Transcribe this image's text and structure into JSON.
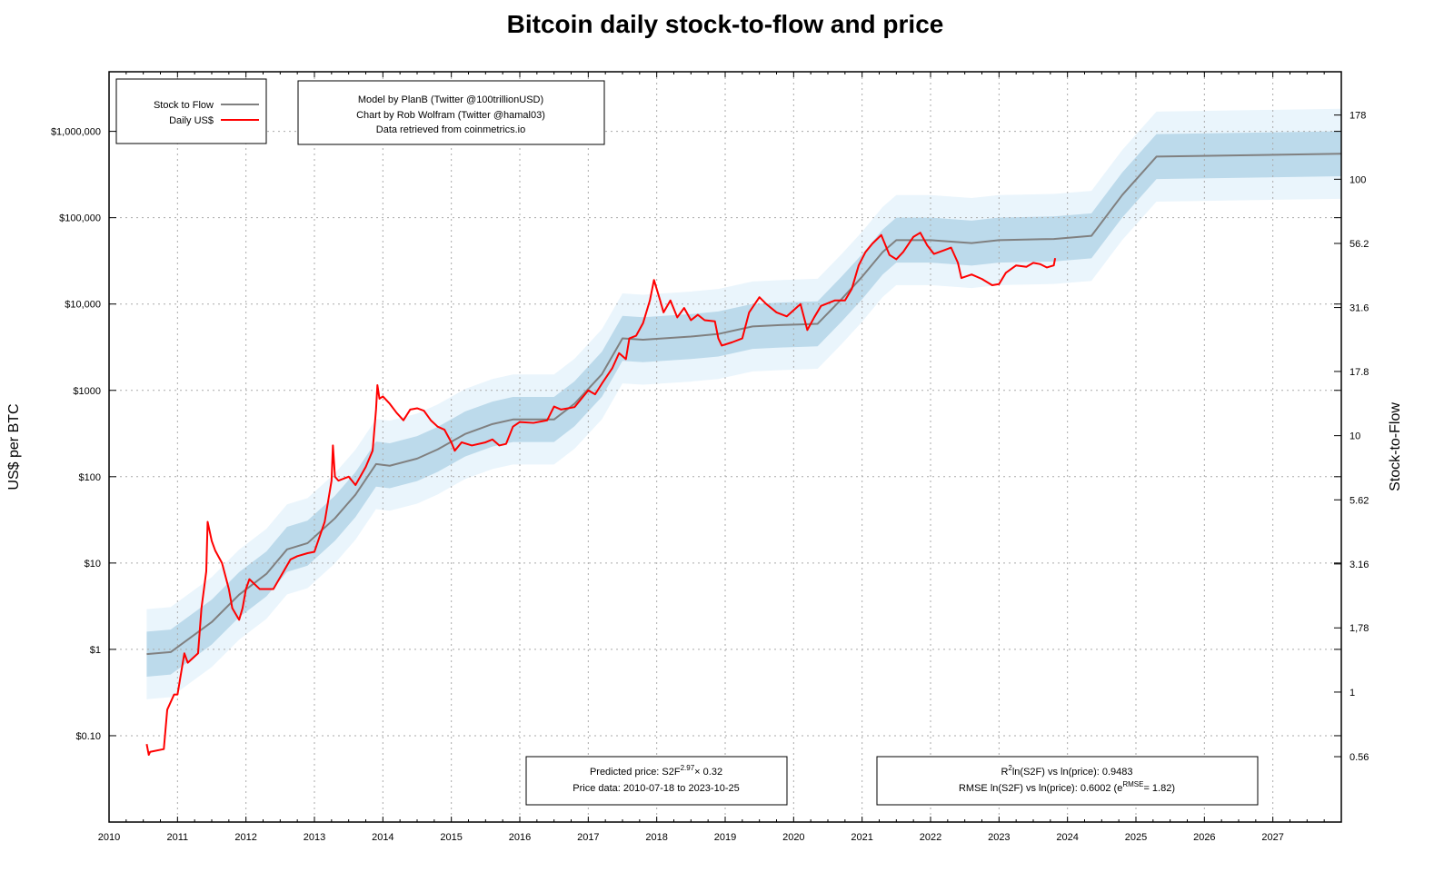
{
  "chart_data": {
    "type": "line",
    "title": "Bitcoin daily stock-to-flow and price",
    "ylabel": "US$ per BTC",
    "y2label": "Stock-to-Flow",
    "xlim": [
      2010,
      2028
    ],
    "ylim": [
      0.01,
      4900000
    ],
    "yscale": "log",
    "grid": true,
    "legend_placement": "top-left",
    "x_ticks": [
      "2010",
      "2011",
      "2012",
      "2013",
      "2014",
      "2015",
      "2016",
      "2017",
      "2018",
      "2019",
      "2020",
      "2021",
      "2022",
      "2023",
      "2024",
      "2025",
      "2026",
      "2027"
    ],
    "y_ticks": [
      {
        "value": 0.1,
        "label": "$0.10"
      },
      {
        "value": 1,
        "label": "$1"
      },
      {
        "value": 10,
        "label": "$10"
      },
      {
        "value": 100,
        "label": "$100"
      },
      {
        "value": 1000,
        "label": "$1000"
      },
      {
        "value": 10000,
        "label": "$10,000"
      },
      {
        "value": 100000,
        "label": "$100,000"
      },
      {
        "value": 1000000,
        "label": "$1,000,000"
      }
    ],
    "y2_ticks": [
      {
        "value": 0.56,
        "label": "0.56"
      },
      {
        "value": 1,
        "label": "1"
      },
      {
        "value": 1.78,
        "label": "1,78"
      },
      {
        "value": 3.16,
        "label": "3.16"
      },
      {
        "value": 5.62,
        "label": "5.62"
      },
      {
        "value": 10,
        "label": "10"
      },
      {
        "value": 17.8,
        "label": "17.8"
      },
      {
        "value": 31.6,
        "label": "31.6"
      },
      {
        "value": 56.2,
        "label": "56.2"
      },
      {
        "value": 100,
        "label": "100"
      },
      {
        "value": 178,
        "label": "178"
      }
    ],
    "model": {
      "coefficient": 0.32,
      "exponent": 2.97,
      "rmse": 0.6002
    },
    "series": [
      {
        "name": "Stock to Flow",
        "color": "#808080",
        "x": [
          2010.55,
          2010.9,
          2011.5,
          2011.9,
          2012.3,
          2012.6,
          2012.9,
          2013.3,
          2013.6,
          2013.9,
          2014.1,
          2014.5,
          2014.8,
          2015.2,
          2015.6,
          2015.9,
          2016.5,
          2016.8,
          2017.2,
          2017.5,
          2017.8,
          2018.5,
          2018.9,
          2019.4,
          2019.8,
          2020.35,
          2020.7,
          2021.0,
          2021.3,
          2021.5,
          2022.0,
          2022.6,
          2023.0,
          2023.8,
          2024.35,
          2024.8,
          2025.3,
          2028.0
        ],
        "y": [
          0.88,
          0.93,
          2.07,
          4.3,
          7.5,
          14.4,
          17,
          33,
          62,
          140,
          134,
          162,
          207,
          312,
          407,
          460,
          460,
          700,
          1540,
          4000,
          3860,
          4200,
          4500,
          5500,
          5700,
          5900,
          11400,
          20700,
          40000,
          55000,
          55000,
          50800,
          55000,
          56700,
          61600,
          183000,
          510000,
          550000
        ]
      },
      {
        "name": "Daily US$",
        "color": "#ff0000",
        "x": [
          2010.55,
          2010.58,
          2010.6,
          2010.8,
          2010.85,
          2010.95,
          2011.0,
          2011.1,
          2011.15,
          2011.3,
          2011.35,
          2011.42,
          2011.44,
          2011.5,
          2011.55,
          2011.65,
          2011.75,
          2011.8,
          2011.9,
          2011.95,
          2012.0,
          2012.05,
          2012.2,
          2012.4,
          2012.55,
          2012.65,
          2012.75,
          2012.9,
          2013.0,
          2013.15,
          2013.25,
          2013.27,
          2013.3,
          2013.35,
          2013.5,
          2013.6,
          2013.75,
          2013.85,
          2013.9,
          2013.92,
          2013.95,
          2014.0,
          2014.1,
          2014.2,
          2014.3,
          2014.4,
          2014.5,
          2014.6,
          2014.7,
          2014.8,
          2014.9,
          2015.0,
          2015.05,
          2015.15,
          2015.3,
          2015.5,
          2015.6,
          2015.7,
          2015.8,
          2015.9,
          2016.0,
          2016.2,
          2016.4,
          2016.5,
          2016.6,
          2016.8,
          2017.0,
          2017.1,
          2017.2,
          2017.35,
          2017.45,
          2017.55,
          2017.6,
          2017.7,
          2017.8,
          2017.9,
          2017.96,
          2018.05,
          2018.1,
          2018.2,
          2018.3,
          2018.4,
          2018.5,
          2018.6,
          2018.7,
          2018.85,
          2018.9,
          2018.95,
          2019.1,
          2019.25,
          2019.35,
          2019.5,
          2019.6,
          2019.75,
          2019.9,
          2020.1,
          2020.2,
          2020.3,
          2020.4,
          2020.6,
          2020.75,
          2020.85,
          2020.95,
          2021.05,
          2021.15,
          2021.28,
          2021.4,
          2021.5,
          2021.6,
          2021.75,
          2021.85,
          2021.95,
          2022.05,
          2022.2,
          2022.3,
          2022.4,
          2022.45,
          2022.6,
          2022.75,
          2022.9,
          2023.0,
          2023.1,
          2023.25,
          2023.4,
          2023.5,
          2023.6,
          2023.7,
          2023.8,
          2023.82
        ],
        "y": [
          0.08,
          0.06,
          0.065,
          0.07,
          0.2,
          0.3,
          0.3,
          0.9,
          0.7,
          0.9,
          3,
          8,
          30,
          18,
          14,
          10,
          5,
          3,
          2.2,
          3,
          5,
          6.5,
          5,
          5,
          8,
          11,
          12,
          13,
          13.5,
          30,
          90,
          230,
          100,
          90,
          100,
          80,
          130,
          200,
          600,
          1150,
          800,
          850,
          700,
          550,
          450,
          600,
          620,
          580,
          450,
          380,
          350,
          250,
          200,
          250,
          230,
          250,
          270,
          230,
          240,
          380,
          430,
          420,
          450,
          650,
          600,
          640,
          1000,
          900,
          1200,
          1800,
          2700,
          2300,
          4000,
          4300,
          6000,
          11000,
          19000,
          11000,
          8000,
          11000,
          7000,
          9000,
          6500,
          7500,
          6500,
          6300,
          4000,
          3300,
          3600,
          4000,
          8000,
          12000,
          10000,
          8000,
          7200,
          10000,
          5000,
          7000,
          9500,
          11000,
          11000,
          15000,
          28000,
          40000,
          50000,
          63000,
          37000,
          33000,
          40000,
          60000,
          67000,
          48000,
          38000,
          42000,
          45000,
          30000,
          20000,
          22000,
          19500,
          16500,
          17000,
          23000,
          28000,
          27000,
          30000,
          29000,
          26500,
          28000,
          34000
        ]
      }
    ],
    "bands": {
      "inner_color": "#bcdaeb",
      "outer_color": "#eaf5fc"
    },
    "legend": [
      {
        "label": "Stock to Flow",
        "color": "#808080"
      },
      {
        "label": "Daily US$",
        "color": "#ff0000"
      }
    ],
    "credits": [
      "Model by PlanB (Twitter @100trillionUSD)",
      "Chart by Rob Wolfram (Twitter @hamal03)",
      "Data retrieved from coinmetrics.io"
    ],
    "annotations": {
      "predicted_prefix": "Predicted price: S2F",
      "predicted_exp": "2.97",
      "predicted_suffix": "× 0.32",
      "price_data": "Price data: 2010-07-18 to 2023-10-25",
      "r2_prefix": "R",
      "r2_sup": "2",
      "r2_suffix": "ln(S2F) vs ln(price): 0.9483",
      "rmse_prefix": "RMSE ln(S2F) vs ln(price): 0.6002 (e",
      "rmse_sup": "RMSE",
      "rmse_suffix": "= 1.82)"
    }
  }
}
